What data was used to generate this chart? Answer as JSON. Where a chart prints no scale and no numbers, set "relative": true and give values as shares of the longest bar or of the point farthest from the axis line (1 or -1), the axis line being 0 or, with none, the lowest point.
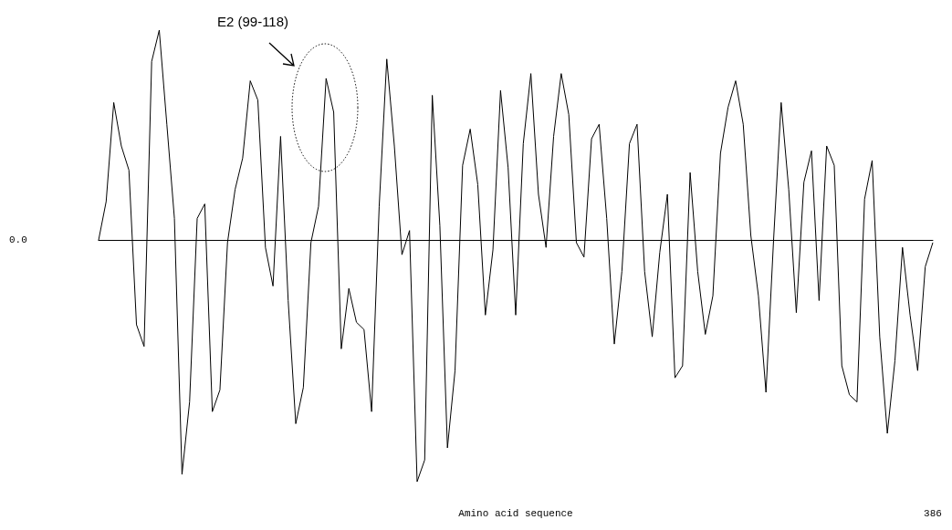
{
  "chart_data": {
    "type": "line",
    "relative": true,
    "color": "#000000",
    "xlabel": "Amino acid sequence",
    "annotations": [
      "E2 (99-118)",
      "0.0",
      "386"
    ],
    "categories": [
      null,
      null,
      null,
      null,
      null,
      null,
      null,
      null,
      null,
      null,
      null,
      null,
      null,
      null,
      null,
      null,
      null,
      null,
      null,
      null,
      null,
      null,
      null,
      null,
      null,
      null,
      null,
      null,
      null,
      null,
      null,
      null,
      null,
      null,
      null,
      null,
      null,
      null,
      null,
      null,
      null,
      null,
      null,
      null,
      null,
      null,
      null,
      null,
      null,
      null,
      null,
      null,
      null,
      null,
      null,
      null,
      null,
      null,
      null,
      null,
      null,
      null,
      null,
      null,
      null,
      null,
      null,
      null,
      null,
      null,
      null,
      null,
      null,
      null,
      null,
      null,
      null,
      null,
      null,
      null,
      null,
      null,
      null,
      null,
      null,
      null,
      null,
      null,
      null,
      null,
      null,
      null,
      null,
      null,
      null,
      null,
      null,
      null,
      null,
      null,
      null,
      null,
      null,
      null,
      null,
      null,
      null,
      null,
      null,
      null,
      null
    ],
    "values": [
      0,
      0.16,
      0.57,
      0.39,
      0.29,
      -0.35,
      -0.44,
      0.74,
      0.87,
      0.48,
      0.09,
      -0.97,
      -0.67,
      0.09,
      0.15,
      -0.71,
      -0.62,
      -0.01,
      0.21,
      0.34,
      0.66,
      0.58,
      -0.03,
      -0.19,
      0.43,
      -0.25,
      -0.76,
      -0.61,
      -0.01,
      0.14,
      0.67,
      0.53,
      -0.45,
      -0.2,
      -0.34,
      -0.37,
      -0.71,
      0.14,
      0.75,
      0.39,
      -0.06,
      0.04,
      -1,
      -0.91,
      0.6,
      0.06,
      -0.86,
      -0.54,
      0.31,
      0.46,
      0.23,
      -0.31,
      -0.04,
      0.62,
      0.3,
      -0.31,
      0.4,
      0.69,
      0.19,
      -0.03,
      0.43,
      0.69,
      0.52,
      -0.01,
      -0.07,
      0.42,
      0.48,
      0.09,
      -0.43,
      -0.13,
      0.4,
      0.48,
      -0.13,
      -0.4,
      -0.05,
      0.19,
      -0.57,
      -0.52,
      0.28,
      -0.13,
      -0.39,
      -0.23,
      0.36,
      0.55,
      0.66,
      0.48,
      0.02,
      -0.23,
      -0.63,
      0,
      0.57,
      0.21,
      -0.3,
      0.24,
      0.37,
      -0.25,
      0.39,
      0.31,
      -0.52,
      -0.64,
      -0.67,
      0.17,
      0.33,
      -0.4,
      -0.8,
      -0.5,
      -0.03,
      -0.31,
      -0.54,
      -0.11,
      -0.01
    ]
  }
}
